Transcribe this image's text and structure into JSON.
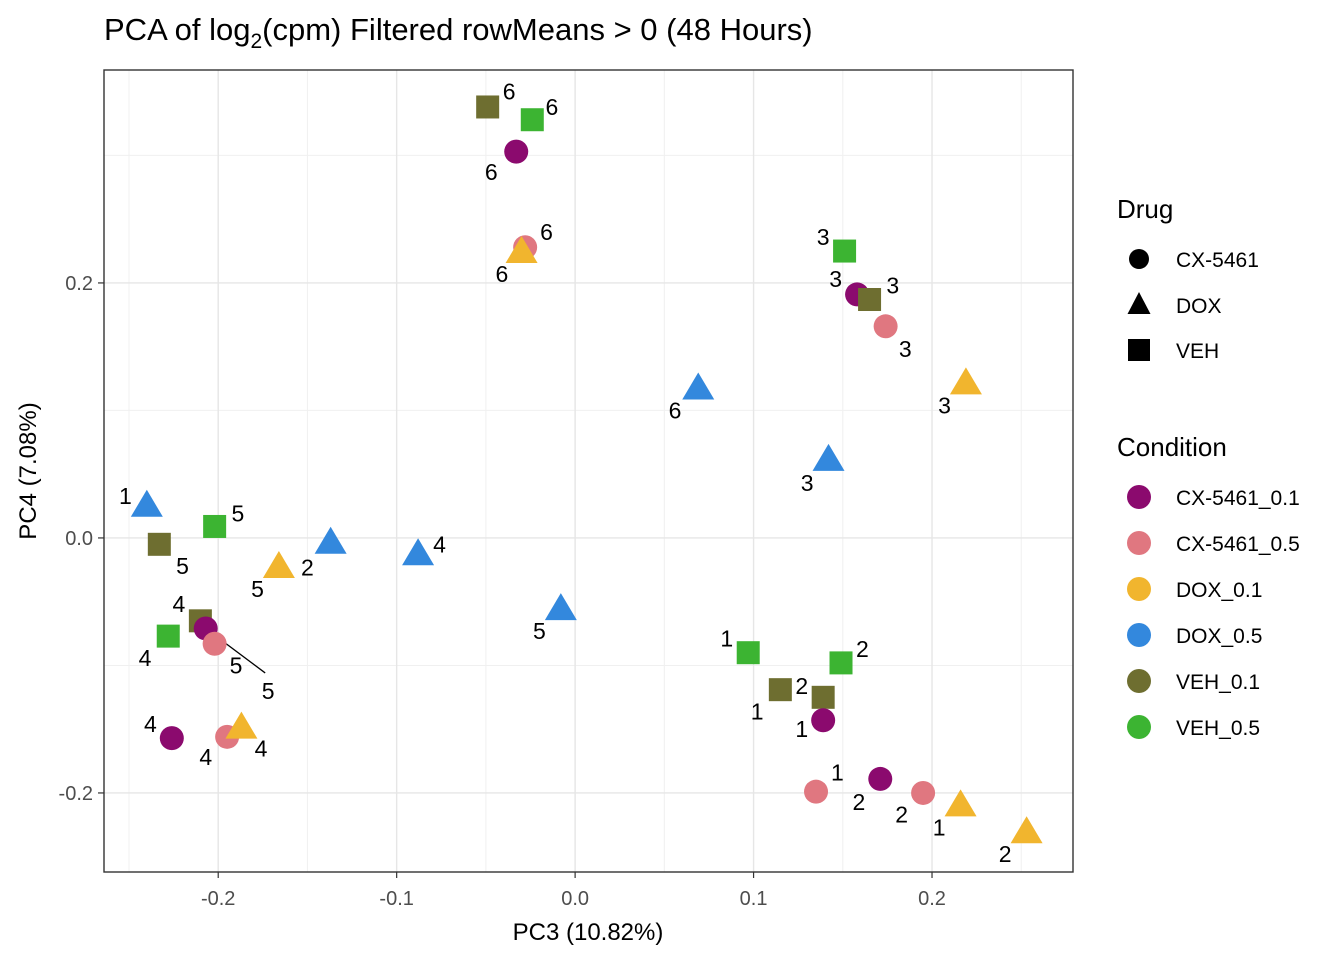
{
  "chart_data": {
    "type": "scatter",
    "title_main": "PCA of log",
    "title_sub": "2",
    "title_rest": "(cpm) Filtered rowMeans > 0 (48 Hours)",
    "xlabel": "PC3 (10.82%)",
    "ylabel": "PC4 (7.08%)",
    "xlim": [
      -0.264,
      0.279
    ],
    "ylim": [
      -0.262,
      0.367
    ],
    "grid": true,
    "x_ticks": [
      {
        "value": -0.2,
        "label": "-0.2"
      },
      {
        "value": -0.1,
        "label": "-0.1"
      },
      {
        "value": 0.0,
        "label": "0.0"
      },
      {
        "value": 0.1,
        "label": "0.1"
      },
      {
        "value": 0.2,
        "label": "0.2"
      }
    ],
    "y_ticks": [
      {
        "value": -0.2,
        "label": "-0.2"
      },
      {
        "value": 0.0,
        "label": "0.0"
      },
      {
        "value": 0.2,
        "label": "0.2"
      }
    ],
    "legend_drug": {
      "title": "Drug",
      "items": [
        {
          "label": "CX-5461",
          "shape": "circle"
        },
        {
          "label": "DOX",
          "shape": "triangle"
        },
        {
          "label": "VEH",
          "shape": "square"
        }
      ]
    },
    "legend_condition": {
      "title": "Condition",
      "items": [
        {
          "label": "CX-5461_0.1",
          "color": "#8B0A6E"
        },
        {
          "label": "CX-5461_0.5",
          "color": "#E07780"
        },
        {
          "label": "DOX_0.1",
          "color": "#F1B52E"
        },
        {
          "label": "DOX_0.5",
          "color": "#3388DD"
        },
        {
          "label": "VEH_0.1",
          "color": "#6E6E30"
        },
        {
          "label": "VEH_0.5",
          "color": "#3CB432"
        }
      ]
    },
    "points": [
      {
        "x": -0.049,
        "y": 0.338,
        "shape": "square",
        "condition": "VEH_0.1",
        "label": "6",
        "lx": -0.037,
        "ly": 0.35
      },
      {
        "x": -0.024,
        "y": 0.328,
        "shape": "square",
        "condition": "VEH_0.5",
        "label": "6",
        "lx": -0.013,
        "ly": 0.338
      },
      {
        "x": -0.033,
        "y": 0.303,
        "shape": "circle",
        "condition": "CX-5461_0.1",
        "label": "6",
        "lx": -0.047,
        "ly": 0.287
      },
      {
        "x": -0.028,
        "y": 0.228,
        "shape": "circle",
        "condition": "CX-5461_0.5",
        "label": "6",
        "lx": -0.016,
        "ly": 0.24
      },
      {
        "x": -0.03,
        "y": 0.225,
        "shape": "triangle",
        "condition": "DOX_0.1",
        "label": "6",
        "lx": -0.041,
        "ly": 0.207
      },
      {
        "x": 0.151,
        "y": 0.225,
        "shape": "square",
        "condition": "VEH_0.5",
        "label": "3",
        "lx": 0.139,
        "ly": 0.236
      },
      {
        "x": 0.158,
        "y": 0.191,
        "shape": "circle",
        "condition": "CX-5461_0.1",
        "label": "3",
        "lx": 0.146,
        "ly": 0.203
      },
      {
        "x": 0.165,
        "y": 0.187,
        "shape": "square",
        "condition": "VEH_0.1",
        "label": "3",
        "lx": 0.178,
        "ly": 0.198
      },
      {
        "x": 0.174,
        "y": 0.166,
        "shape": "circle",
        "condition": "CX-5461_0.5",
        "label": "3",
        "lx": 0.185,
        "ly": 0.148
      },
      {
        "x": 0.219,
        "y": 0.122,
        "shape": "triangle",
        "condition": "DOX_0.1",
        "label": "3",
        "lx": 0.207,
        "ly": 0.104
      },
      {
        "x": 0.069,
        "y": 0.118,
        "shape": "triangle",
        "condition": "DOX_0.5",
        "label": "6",
        "lx": 0.056,
        "ly": 0.1
      },
      {
        "x": 0.142,
        "y": 0.062,
        "shape": "triangle",
        "condition": "DOX_0.5",
        "label": "3",
        "lx": 0.13,
        "ly": 0.043
      },
      {
        "x": -0.24,
        "y": 0.026,
        "shape": "triangle",
        "condition": "DOX_0.5",
        "label": "1",
        "lx": -0.252,
        "ly": 0.033
      },
      {
        "x": -0.202,
        "y": 0.009,
        "shape": "square",
        "condition": "VEH_0.5",
        "label": "5",
        "lx": -0.189,
        "ly": 0.019
      },
      {
        "x": -0.233,
        "y": -0.005,
        "shape": "square",
        "condition": "VEH_0.1",
        "label": "5",
        "lx": -0.22,
        "ly": -0.022
      },
      {
        "x": -0.137,
        "y": -0.003,
        "shape": "triangle",
        "condition": "DOX_0.5",
        "label": "2",
        "lx": -0.15,
        "ly": -0.023
      },
      {
        "x": -0.088,
        "y": -0.012,
        "shape": "triangle",
        "condition": "DOX_0.5",
        "label": "4",
        "lx": -0.076,
        "ly": -0.005
      },
      {
        "x": -0.166,
        "y": -0.022,
        "shape": "triangle",
        "condition": "DOX_0.1",
        "label": "5",
        "lx": -0.178,
        "ly": -0.04
      },
      {
        "x": -0.008,
        "y": -0.055,
        "shape": "triangle",
        "condition": "DOX_0.5",
        "label": "5",
        "lx": -0.02,
        "ly": -0.073
      },
      {
        "x": -0.21,
        "y": -0.065,
        "shape": "square",
        "condition": "VEH_0.1",
        "label": "4",
        "lx": -0.222,
        "ly": -0.052
      },
      {
        "x": -0.228,
        "y": -0.077,
        "shape": "square",
        "condition": "VEH_0.5",
        "label": "4",
        "lx": -0.241,
        "ly": -0.094
      },
      {
        "x": -0.207,
        "y": -0.071,
        "shape": "circle",
        "condition": "CX-5461_0.1",
        "label": "5",
        "lx": -0.172,
        "ly": -0.12,
        "leader": true
      },
      {
        "x": -0.202,
        "y": -0.083,
        "shape": "circle",
        "condition": "CX-5461_0.5",
        "label": "5",
        "lx": -0.19,
        "ly": -0.1
      },
      {
        "x": -0.226,
        "y": -0.157,
        "shape": "circle",
        "condition": "CX-5461_0.1",
        "label": "4",
        "lx": -0.238,
        "ly": -0.146
      },
      {
        "x": -0.195,
        "y": -0.156,
        "shape": "circle",
        "condition": "CX-5461_0.5",
        "label": "4",
        "lx": -0.207,
        "ly": -0.172
      },
      {
        "x": -0.187,
        "y": -0.148,
        "shape": "triangle",
        "condition": "DOX_0.1",
        "label": "4",
        "lx": -0.176,
        "ly": -0.165
      },
      {
        "x": 0.097,
        "y": -0.09,
        "shape": "square",
        "condition": "VEH_0.5",
        "label": "1",
        "lx": 0.085,
        "ly": -0.079
      },
      {
        "x": 0.149,
        "y": -0.098,
        "shape": "square",
        "condition": "VEH_0.5",
        "label": "2",
        "lx": 0.161,
        "ly": -0.087
      },
      {
        "x": 0.115,
        "y": -0.119,
        "shape": "square",
        "condition": "VEH_0.1",
        "label": "2",
        "lx": 0.127,
        "ly": -0.116
      },
      {
        "x": 0.139,
        "y": -0.125,
        "shape": "square",
        "condition": "VEH_0.1",
        "label": "1",
        "lx": 0.102,
        "ly": -0.136
      },
      {
        "x": 0.139,
        "y": -0.143,
        "shape": "circle",
        "condition": "CX-5461_0.1",
        "label": "1",
        "lx": 0.127,
        "ly": -0.15
      },
      {
        "x": 0.135,
        "y": -0.199,
        "shape": "circle",
        "condition": "CX-5461_0.5",
        "label": "1",
        "lx": 0.147,
        "ly": -0.184
      },
      {
        "x": 0.171,
        "y": -0.189,
        "shape": "circle",
        "condition": "CX-5461_0.1",
        "label": "2",
        "lx": 0.159,
        "ly": -0.207
      },
      {
        "x": 0.195,
        "y": -0.2,
        "shape": "circle",
        "condition": "CX-5461_0.5",
        "label": "2",
        "lx": 0.183,
        "ly": -0.217
      },
      {
        "x": 0.216,
        "y": -0.209,
        "shape": "triangle",
        "condition": "DOX_0.1",
        "label": "1",
        "lx": 0.204,
        "ly": -0.227
      },
      {
        "x": 0.253,
        "y": -0.23,
        "shape": "triangle",
        "condition": "DOX_0.1",
        "label": "2",
        "lx": 0.241,
        "ly": -0.248
      }
    ]
  }
}
